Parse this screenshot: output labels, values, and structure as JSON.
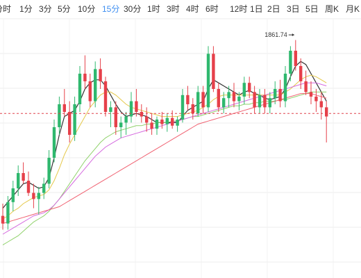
{
  "tabs": [
    {
      "label": "分时"
    },
    {
      "label": "1分"
    },
    {
      "label": "3分"
    },
    {
      "label": "5分"
    },
    {
      "label": "10分"
    },
    {
      "label": "15分",
      "active": true
    },
    {
      "label": "30分"
    },
    {
      "label": "1时"
    },
    {
      "label": "3时"
    },
    {
      "label": "4时"
    },
    {
      "label": "6时"
    },
    {
      "label": "12时"
    },
    {
      "label": "1日"
    },
    {
      "label": "2日"
    },
    {
      "label": "3日"
    },
    {
      "label": "5日"
    },
    {
      "label": "周K"
    },
    {
      "label": "月K"
    }
  ],
  "colors": {
    "up": "#2fb86e",
    "down": "#e6404a",
    "grid": "#ececec",
    "active_tab": "#3d8ef0",
    "price_line": "#e0404a",
    "ma_a": "#333333",
    "ma_b": "#e5c84a",
    "ma_c": "#8fd16a",
    "ma_d": "#d56adf",
    "ma_e": "#f06070"
  },
  "chart_data": {
    "type": "candlestick",
    "ylim": [
      1600,
      1880
    ],
    "annotations": [
      {
        "label": "1861.74",
        "index": 57,
        "value": 1861.74
      }
    ],
    "current_price": 1814,
    "candles": [
      [
        1747,
        1755,
        1738,
        1742
      ],
      [
        1742,
        1760,
        1738,
        1756
      ],
      [
        1756,
        1770,
        1750,
        1765
      ],
      [
        1765,
        1780,
        1760,
        1775
      ],
      [
        1775,
        1782,
        1768,
        1770
      ],
      [
        1770,
        1776,
        1760,
        1762
      ],
      [
        1762,
        1768,
        1752,
        1758
      ],
      [
        1758,
        1766,
        1748,
        1762
      ],
      [
        1762,
        1772,
        1758,
        1768
      ],
      [
        1768,
        1790,
        1765,
        1785
      ],
      [
        1785,
        1810,
        1782,
        1805
      ],
      [
        1805,
        1825,
        1800,
        1820
      ],
      [
        1820,
        1830,
        1812,
        1815
      ],
      [
        1815,
        1822,
        1795,
        1800
      ],
      [
        1800,
        1825,
        1796,
        1820
      ],
      [
        1820,
        1845,
        1815,
        1840
      ],
      [
        1840,
        1852,
        1830,
        1835
      ],
      [
        1835,
        1840,
        1818,
        1822
      ],
      [
        1822,
        1848,
        1818,
        1843
      ],
      [
        1843,
        1850,
        1830,
        1835
      ],
      [
        1835,
        1838,
        1812,
        1815
      ],
      [
        1815,
        1822,
        1805,
        1818
      ],
      [
        1818,
        1822,
        1800,
        1805
      ],
      [
        1805,
        1812,
        1798,
        1808
      ],
      [
        1808,
        1815,
        1800,
        1812
      ],
      [
        1812,
        1828,
        1808,
        1822
      ],
      [
        1822,
        1830,
        1812,
        1815
      ],
      [
        1815,
        1820,
        1808,
        1812
      ],
      [
        1812,
        1818,
        1802,
        1808
      ],
      [
        1808,
        1814,
        1800,
        1804
      ],
      [
        1804,
        1812,
        1800,
        1810
      ],
      [
        1810,
        1815,
        1804,
        1807
      ],
      [
        1807,
        1814,
        1802,
        1811
      ],
      [
        1811,
        1816,
        1804,
        1806
      ],
      [
        1806,
        1812,
        1802,
        1810
      ],
      [
        1810,
        1830,
        1808,
        1826
      ],
      [
        1826,
        1832,
        1816,
        1820
      ],
      [
        1820,
        1824,
        1810,
        1814
      ],
      [
        1814,
        1832,
        1812,
        1828
      ],
      [
        1828,
        1832,
        1814,
        1818
      ],
      [
        1818,
        1858,
        1815,
        1853
      ],
      [
        1853,
        1858,
        1828,
        1830
      ],
      [
        1830,
        1834,
        1815,
        1818
      ],
      [
        1818,
        1828,
        1814,
        1824
      ],
      [
        1824,
        1832,
        1818,
        1828
      ],
      [
        1828,
        1834,
        1818,
        1822
      ],
      [
        1822,
        1828,
        1816,
        1825
      ],
      [
        1825,
        1838,
        1820,
        1834
      ],
      [
        1834,
        1838,
        1824,
        1828
      ],
      [
        1828,
        1832,
        1814,
        1818
      ],
      [
        1818,
        1830,
        1814,
        1826
      ],
      [
        1826,
        1830,
        1814,
        1818
      ],
      [
        1818,
        1828,
        1814,
        1824
      ],
      [
        1824,
        1835,
        1820,
        1830
      ],
      [
        1830,
        1836,
        1818,
        1822
      ],
      [
        1822,
        1845,
        1818,
        1840
      ],
      [
        1840,
        1858,
        1835,
        1855
      ],
      [
        1855,
        1862,
        1842,
        1845
      ],
      [
        1845,
        1850,
        1830,
        1835
      ],
      [
        1835,
        1842,
        1826,
        1828
      ],
      [
        1828,
        1835,
        1820,
        1825
      ],
      [
        1825,
        1830,
        1815,
        1822
      ],
      [
        1822,
        1828,
        1810,
        1818
      ],
      [
        1818,
        1822,
        1795,
        1812
      ]
    ],
    "series": [
      {
        "name": "",
        "color_key": "ma_a",
        "values": [
          1752,
          1756,
          1760,
          1764,
          1768,
          1769,
          1767,
          1765,
          1766,
          1772,
          1785,
          1800,
          1812,
          1814,
          1816,
          1822,
          1830,
          1834,
          1836,
          1836,
          1832,
          1826,
          1820,
          1815,
          1812,
          1813,
          1814,
          1813,
          1812,
          1810,
          1808,
          1808,
          1808,
          1808,
          1808,
          1812,
          1816,
          1818,
          1820,
          1822,
          1830,
          1836,
          1834,
          1832,
          1830,
          1828,
          1826,
          1828,
          1829,
          1827,
          1826,
          1824,
          1823,
          1824,
          1825,
          1830,
          1838,
          1845,
          1848,
          1846,
          1840,
          1834,
          1828,
          1822
        ]
      },
      {
        "name": "",
        "color_key": "ma_b",
        "values": [
          1745,
          1747,
          1750,
          1752,
          1755,
          1757,
          1759,
          1760,
          1761,
          1764,
          1770,
          1778,
          1787,
          1794,
          1800,
          1806,
          1812,
          1818,
          1822,
          1826,
          1828,
          1828,
          1826,
          1823,
          1820,
          1818,
          1817,
          1816,
          1815,
          1814,
          1813,
          1812,
          1812,
          1812,
          1812,
          1813,
          1814,
          1815,
          1816,
          1818,
          1820,
          1823,
          1825,
          1826,
          1826,
          1826,
          1826,
          1826,
          1826,
          1826,
          1826,
          1826,
          1826,
          1826,
          1826,
          1828,
          1830,
          1833,
          1836,
          1838,
          1839,
          1838,
          1836,
          1834
        ]
      },
      {
        "name": "",
        "color_key": "ma_c",
        "values": [
          1728,
          1730,
          1732,
          1734,
          1737,
          1740,
          1743,
          1745,
          1747,
          1750,
          1754,
          1758,
          1763,
          1768,
          1773,
          1778,
          1783,
          1787,
          1791,
          1795,
          1798,
          1800,
          1802,
          1803,
          1804,
          1805,
          1806,
          1806,
          1807,
          1807,
          1808,
          1808,
          1808,
          1809,
          1809,
          1810,
          1811,
          1812,
          1812,
          1813,
          1814,
          1815,
          1816,
          1817,
          1818,
          1819,
          1819,
          1820,
          1820,
          1821,
          1821,
          1822,
          1822,
          1822,
          1823,
          1823,
          1824,
          1825,
          1826,
          1827,
          1828,
          1828,
          1828,
          1828
        ]
      },
      {
        "name": "",
        "color_key": "ma_d",
        "values": [
          1735,
          1737,
          1739,
          1741,
          1743,
          1745,
          1747,
          1748,
          1749,
          1751,
          1754,
          1758,
          1762,
          1766,
          1770,
          1774,
          1778,
          1782,
          1786,
          1789,
          1792,
          1794,
          1796,
          1798,
          1799,
          1800,
          1801,
          1802,
          1803,
          1804,
          1805,
          1806,
          1807,
          1808,
          1809,
          1810,
          1811,
          1812,
          1813,
          1814,
          1815,
          1816,
          1817,
          1818,
          1819,
          1820,
          1821,
          1822,
          1823,
          1824,
          1825,
          1826,
          1827,
          1828,
          1829,
          1830,
          1831,
          1832,
          1833,
          1834,
          1834,
          1834,
          1833,
          1832
        ]
      },
      {
        "name": "",
        "color_key": "ma_e",
        "values": [
          1742,
          1743,
          1744,
          1745,
          1746,
          1747,
          1748,
          1749,
          1750,
          1751,
          1752,
          1753,
          1755,
          1757,
          1759,
          1761,
          1763,
          1765,
          1767,
          1769,
          1771,
          1773,
          1775,
          1777,
          1779,
          1781,
          1783,
          1785,
          1787,
          1789,
          1791,
          1793,
          1795,
          1797,
          1799,
          1801,
          1803,
          1805,
          1807,
          1808,
          1809,
          1810,
          1811,
          1812,
          1813,
          1814,
          1815,
          1816,
          1817,
          1818,
          1819,
          1820,
          1821,
          1822,
          1823,
          1824,
          1825,
          1826,
          1827,
          1827,
          1827,
          1826,
          1825,
          1824
        ]
      }
    ]
  }
}
